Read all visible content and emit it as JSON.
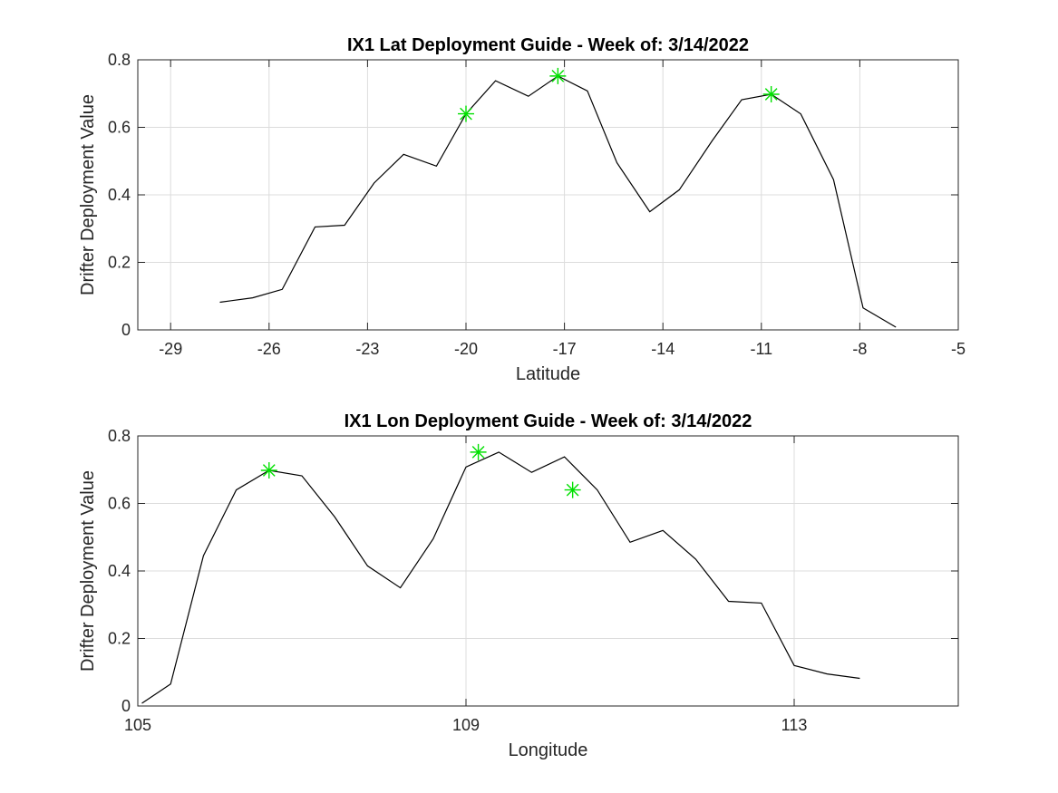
{
  "chart_data": [
    {
      "type": "line",
      "title": "IX1 Lat Deployment Guide - Week of: 3/14/2022",
      "xlabel": "Latitude",
      "ylabel": "Drifter Deployment Value",
      "xlim": [
        -30,
        -5
      ],
      "ylim": [
        0,
        0.8
      ],
      "xticks": [
        -29,
        -26,
        -23,
        -20,
        -17,
        -14,
        -11,
        -8,
        -5
      ],
      "xtick_labels": [
        "-29",
        "-26",
        "-23",
        "-20",
        "-17",
        "-14",
        "-11",
        "-8",
        "-5"
      ],
      "yticks": [
        0,
        0.2,
        0.4,
        0.6,
        0.8
      ],
      "ytick_labels": [
        "0",
        "0.2",
        "0.4",
        "0.6",
        "0.8"
      ],
      "grid": true,
      "series": [
        {
          "x": [
            -27.5,
            -26.5,
            -25.6,
            -24.6,
            -23.7,
            -22.8,
            -21.9,
            -20.9,
            -20.0,
            -19.1,
            -18.1,
            -17.2,
            -16.3,
            -15.4,
            -14.4,
            -13.5,
            -12.5,
            -11.6,
            -10.7,
            -9.8,
            -8.8,
            -7.9,
            -6.9
          ],
          "y": [
            0.082,
            0.095,
            0.12,
            0.305,
            0.31,
            0.435,
            0.52,
            0.485,
            0.64,
            0.738,
            0.692,
            0.752,
            0.708,
            0.495,
            0.35,
            0.415,
            0.56,
            0.682,
            0.698,
            0.64,
            0.445,
            0.065,
            0.008
          ]
        }
      ],
      "markers": {
        "symbol": "asterisk",
        "color": "#00e000",
        "x": [
          -20.0,
          -17.2,
          -10.7
        ],
        "y": [
          0.64,
          0.752,
          0.698
        ]
      }
    },
    {
      "type": "line",
      "title": "IX1 Lon Deployment Guide - Week of: 3/14/2022",
      "xlabel": "Longitude",
      "ylabel": "Drifter Deployment Value",
      "xlim": [
        105,
        115
      ],
      "ylim": [
        0,
        0.8
      ],
      "xticks": [
        105,
        109,
        113
      ],
      "xtick_labels": [
        "105",
        "109",
        "113"
      ],
      "yticks": [
        0,
        0.2,
        0.4,
        0.6,
        0.8
      ],
      "ytick_labels": [
        "0",
        "0.2",
        "0.4",
        "0.6",
        "0.8"
      ],
      "grid": true,
      "series": [
        {
          "x": [
            105.05,
            105.4,
            105.8,
            106.2,
            106.6,
            107.0,
            107.4,
            107.8,
            108.2,
            108.6,
            109.0,
            109.4,
            109.8,
            110.2,
            110.6,
            111.0,
            111.4,
            111.8,
            112.2,
            112.6,
            113.0,
            113.4,
            113.8
          ],
          "y": [
            0.008,
            0.065,
            0.445,
            0.64,
            0.698,
            0.682,
            0.56,
            0.415,
            0.35,
            0.495,
            0.708,
            0.752,
            0.692,
            0.738,
            0.64,
            0.485,
            0.52,
            0.435,
            0.31,
            0.305,
            0.12,
            0.095,
            0.082
          ]
        }
      ],
      "markers": {
        "symbol": "asterisk",
        "color": "#00e000",
        "x": [
          106.6,
          109.15,
          110.3
        ],
        "y": [
          0.698,
          0.752,
          0.64
        ]
      }
    }
  ]
}
